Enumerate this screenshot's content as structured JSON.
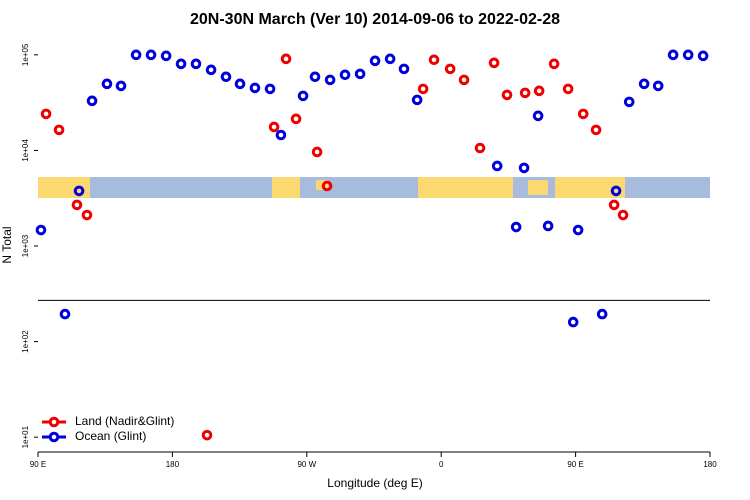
{
  "chart_data": {
    "type": "scatter",
    "title": "20N-30N March (Ver 10)   2014-09-06 to 2022-02-28",
    "x_label": "Longitude (deg E)",
    "y_label": "N Total",
    "log_y": true,
    "legend": "bottom-left",
    "xlim": [
      90,
      540
    ],
    "ylim": [
      7,
      150000
    ],
    "xticks": [
      {
        "value": 90,
        "label": "90 E"
      },
      {
        "value": 180,
        "label": "180"
      },
      {
        "value": 270,
        "label": "90 W"
      },
      {
        "value": 360,
        "label": "0"
      },
      {
        "value": 450,
        "label": "90 E"
      },
      {
        "value": 540,
        "label": "180"
      }
    ],
    "yticks": [
      {
        "value": 10,
        "label": "1e+01"
      },
      {
        "value": 100,
        "label": "1e+02"
      },
      {
        "value": 1000,
        "label": "1e+03"
      },
      {
        "value": 10000,
        "label": "1e+04"
      },
      {
        "value": 100000,
        "label": "1e+05"
      }
    ],
    "reference_line": 270,
    "series": [
      {
        "name": "Land (Nadir&Glint)",
        "color": "#ee0000",
        "x": [
          95.4,
          104.1,
          116.1,
          122.8,
          203.2,
          248.1,
          256.1,
          262.8,
          276.9,
          283.6,
          347.9,
          355.2,
          366.0,
          375.3,
          386.0,
          395.4,
          404.1,
          416.2,
          425.6,
          435.6,
          445.0,
          455.1,
          463.7,
          475.8,
          481.8
        ],
        "values": [
          24100,
          16400,
          2690,
          2110,
          10.5,
          17600,
          90800,
          21400,
          9640,
          4250,
          44000,
          88700,
          71300,
          54700,
          10600,
          82500,
          38100,
          40000,
          42000,
          80500,
          44000,
          24100,
          16400,
          2690,
          2110
        ]
      },
      {
        "name": "Ocean (Glint)",
        "color": "#0000dd",
        "x": [
          92.0,
          117.5,
          108.1,
          126.2,
          136.2,
          145.6,
          155.7,
          165.7,
          175.8,
          185.8,
          195.8,
          205.9,
          215.9,
          225.3,
          235.3,
          245.4,
          252.7,
          267.5,
          275.5,
          285.6,
          295.6,
          305.7,
          315.7,
          325.8,
          335.1,
          343.9,
          397.5,
          410.2,
          415.5,
          424.9,
          431.6,
          448.4,
          451.7,
          467.8,
          477.1,
          485.9,
          495.9,
          505.3,
          515.3,
          525.4,
          535.4
        ],
        "values": [
          1470,
          3770,
          194,
          33000,
          49700,
          47300,
          100000,
          100000,
          97600,
          80500,
          80500,
          69700,
          58900,
          49700,
          45100,
          44000,
          14500,
          37200,
          58900,
          54700,
          61800,
          63200,
          86500,
          90800,
          71300,
          33800,
          6880,
          1580,
          6560,
          23000,
          1620,
          160,
          1470,
          194,
          3770,
          32200,
          49700,
          47300,
          100000,
          100000,
          97600
        ]
      }
    ]
  }
}
